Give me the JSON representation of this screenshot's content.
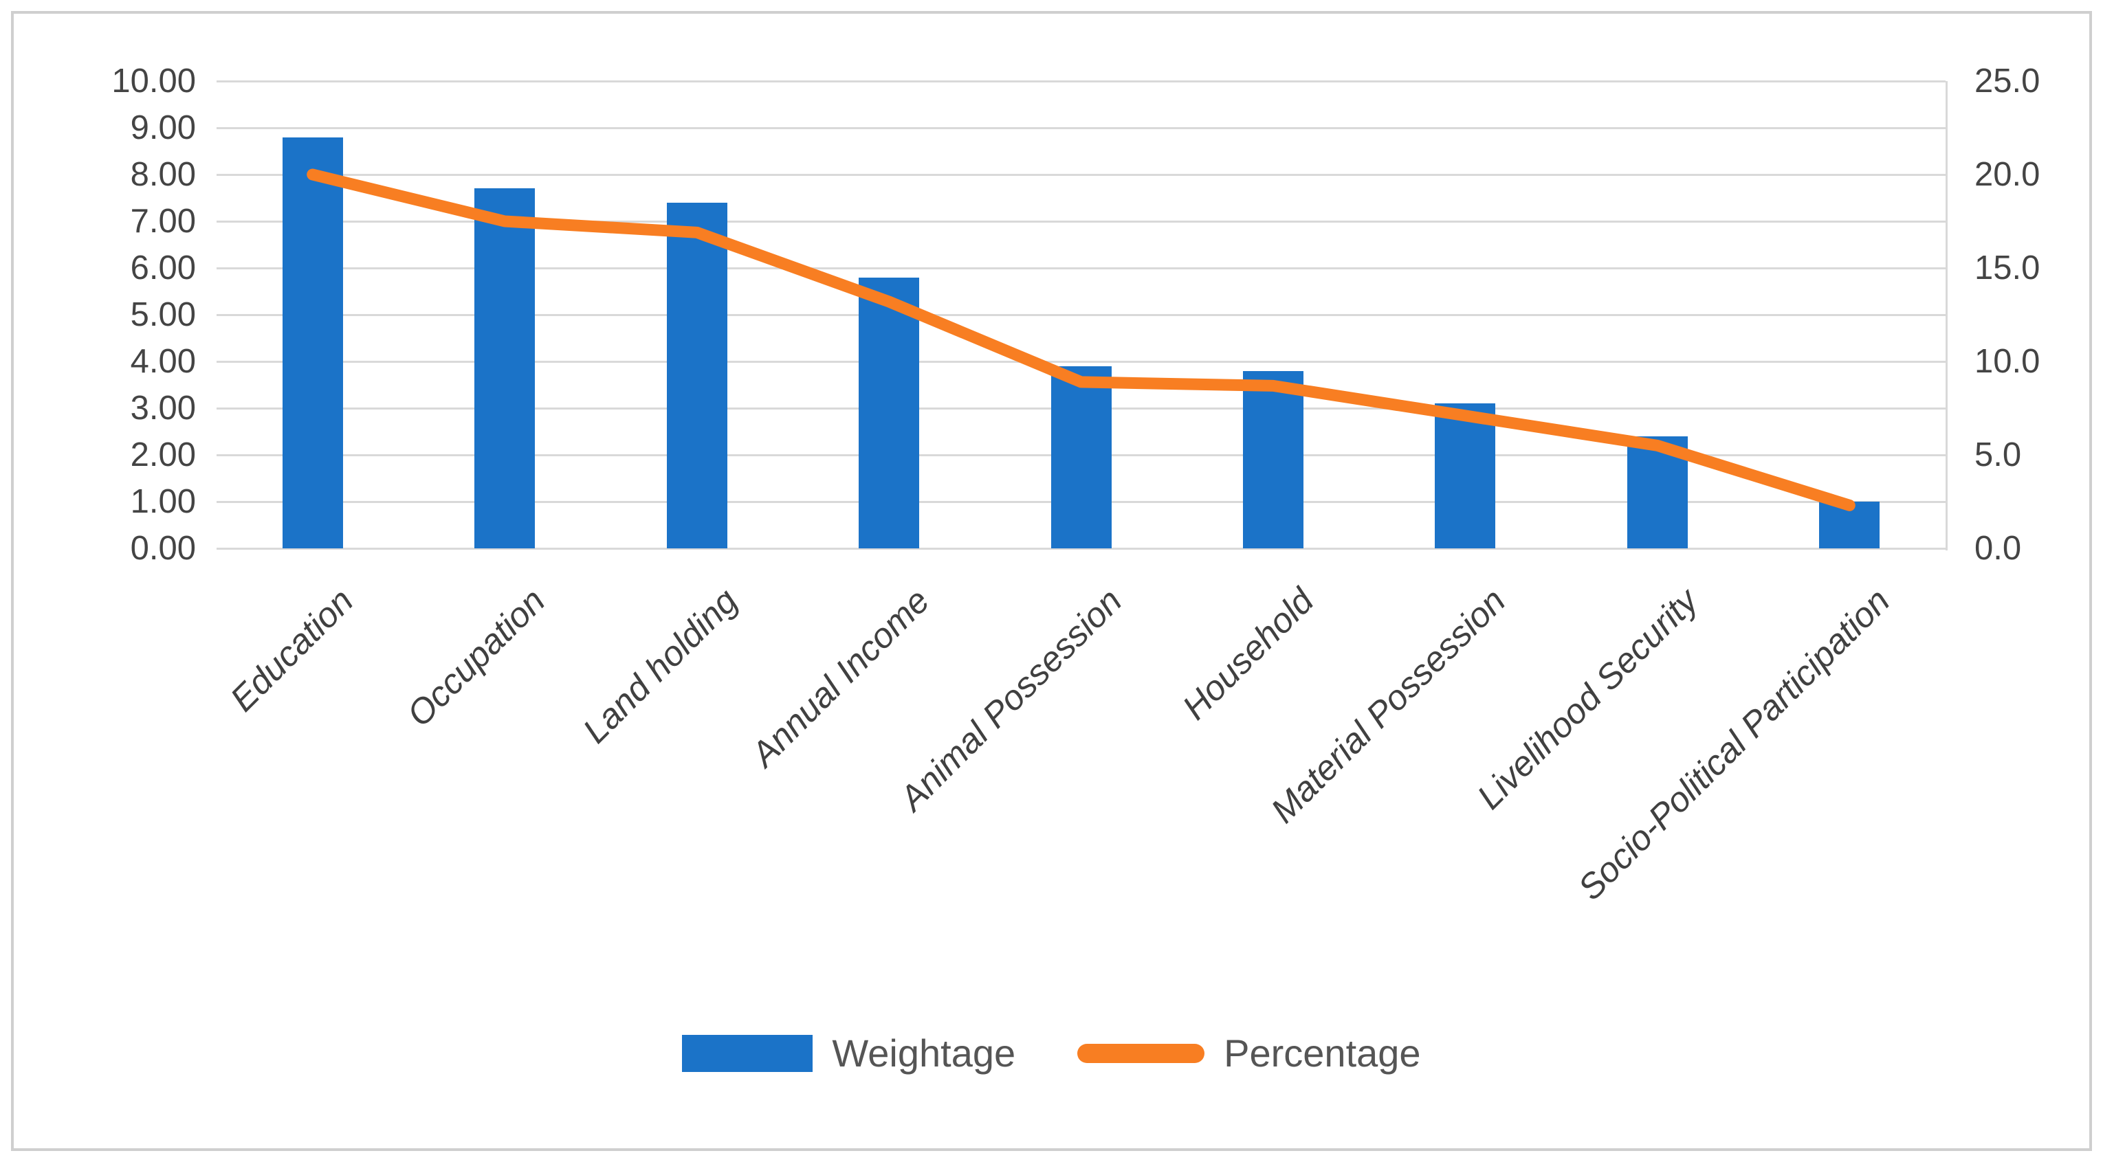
{
  "chart_data": {
    "type": "bar",
    "subtype": "combo-bar-line-dual-axis",
    "title": "",
    "xlabel": "",
    "ylabel": "",
    "categories": [
      "Education",
      "Occupation",
      "Land holding",
      "Annual Income",
      "Animal Possession",
      "Household",
      "Material Possession",
      "Livelihood Security",
      "Socio-Political Participation"
    ],
    "series": [
      {
        "name": "Weightage",
        "type": "bar",
        "axis": "left",
        "color": "#1b73c8",
        "values": [
          8.8,
          7.7,
          7.4,
          5.8,
          3.9,
          3.8,
          3.1,
          2.4,
          1.0
        ]
      },
      {
        "name": "Percentage",
        "type": "line",
        "axis": "right",
        "color": "#f87e22",
        "values": [
          20.0,
          17.5,
          16.9,
          13.2,
          8.9,
          8.7,
          7.1,
          5.5,
          2.3
        ]
      }
    ],
    "left_axis": {
      "min": 0,
      "max": 10,
      "step": 1,
      "tick_labels": [
        "10.00",
        "9.00",
        "8.00",
        "7.00",
        "6.00",
        "5.00",
        "4.00",
        "3.00",
        "2.00",
        "1.00",
        "0.00"
      ]
    },
    "right_axis": {
      "min": 0,
      "max": 25,
      "step": 5,
      "tick_labels": [
        "25.0",
        "20.0",
        "15.0",
        "10.0",
        "5.0",
        "0.0"
      ]
    },
    "grid": true,
    "legend_position": "bottom",
    "legend": [
      "Weightage",
      "Percentage"
    ]
  },
  "colors": {
    "bar_blue": "#1b73c8",
    "line_orange": "#f87e22",
    "gridline_gray": "#d9d9d9",
    "tick_text": "#444444",
    "category_text": "#404040",
    "legend_text": "#555555",
    "frame_border": "#cfcfcf"
  },
  "legend": {
    "weightage_label": "Weightage",
    "percentage_label": "Percentage"
  }
}
